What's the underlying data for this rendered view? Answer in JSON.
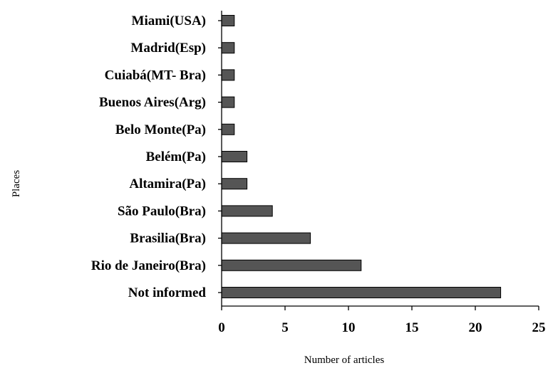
{
  "chart_data": {
    "type": "bar",
    "orientation": "horizontal",
    "title": "",
    "xlabel": "Number of articles",
    "ylabel": "Places",
    "xlim": [
      0,
      25
    ],
    "xticks": [
      0,
      5,
      10,
      15,
      20,
      25
    ],
    "grid": false,
    "legend": "none",
    "bar_color": "#555555",
    "categories": [
      "Not informed",
      "Rio de Janeiro(Bra)",
      "Brasilia(Bra)",
      "São Paulo(Bra)",
      "Altamira(Pa)",
      "Belém(Pa)",
      "Belo Monte(Pa)",
      "Buenos Aires(Arg)",
      "Cuiabá(MT- Bra)",
      "Madrid(Esp)",
      "Miami(USA)"
    ],
    "values": [
      22,
      11,
      7,
      4,
      2,
      2,
      1,
      1,
      1,
      1,
      1
    ]
  }
}
